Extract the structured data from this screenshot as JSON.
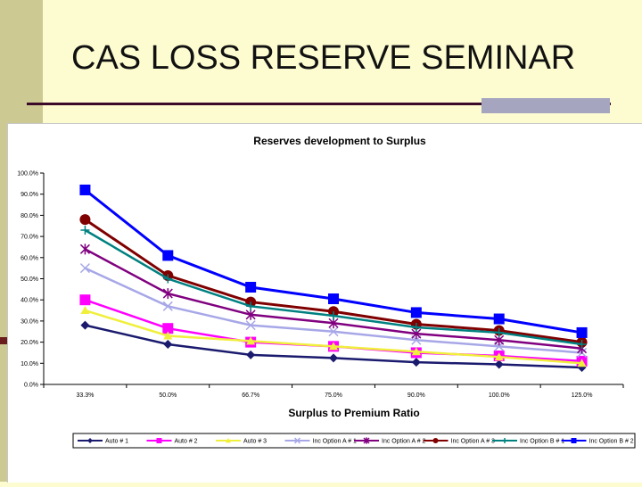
{
  "slide": {
    "title": "CAS LOSS RESERVE SEMINAR"
  },
  "chart_data": {
    "type": "line",
    "title": "Reserves development to Surplus",
    "xlabel": "Surplus to Premium Ratio",
    "ylabel": "",
    "categories": [
      "33.3%",
      "50.0%",
      "66.7%",
      "75.0%",
      "90.0%",
      "100.0%",
      "125.0%"
    ],
    "yticks": [
      "0.0%",
      "10.0%",
      "20.0%",
      "30.0%",
      "40.0%",
      "50.0%",
      "60.0%",
      "70.0%",
      "80.0%",
      "90.0%",
      "100.0%"
    ],
    "ylim": [
      0,
      100
    ],
    "grid": false,
    "legend_position": "bottom",
    "series": [
      {
        "name": "Auto # 1",
        "color": "#1a1a6e",
        "marker": "diamond",
        "values": [
          28,
          19,
          14,
          12.5,
          10.5,
          9.5,
          8
        ]
      },
      {
        "name": "Auto # 2",
        "color": "#ff00ff",
        "marker": "square",
        "values": [
          40,
          26.5,
          20,
          18,
          15,
          13.5,
          11
        ]
      },
      {
        "name": "Auto # 3",
        "color": "#f0ef3c",
        "marker": "triangle",
        "values": [
          35,
          23,
          20.5,
          18,
          15.5,
          13,
          10
        ]
      },
      {
        "name": "Inc Option A # 1",
        "color": "#a7a7e8",
        "marker": "x",
        "values": [
          55,
          37,
          28,
          25,
          21,
          18,
          15
        ]
      },
      {
        "name": "Inc Option A # 2",
        "color": "#800080",
        "marker": "star",
        "values": [
          64,
          43,
          33,
          29,
          24,
          21,
          17
        ]
      },
      {
        "name": "Inc Option A # 3",
        "color": "#800000",
        "marker": "circle",
        "values": [
          78,
          51.5,
          39,
          34.5,
          28.5,
          25.5,
          20
        ]
      },
      {
        "name": "Inc Option B # 1",
        "color": "#008080",
        "marker": "plus",
        "values": [
          73,
          50,
          37,
          32.5,
          27,
          24.5,
          19
        ]
      },
      {
        "name": "Inc Option B # 2",
        "color": "#0000ff",
        "marker": "square",
        "values": [
          92,
          61,
          46,
          40.5,
          34,
          31,
          24.5
        ]
      }
    ]
  }
}
